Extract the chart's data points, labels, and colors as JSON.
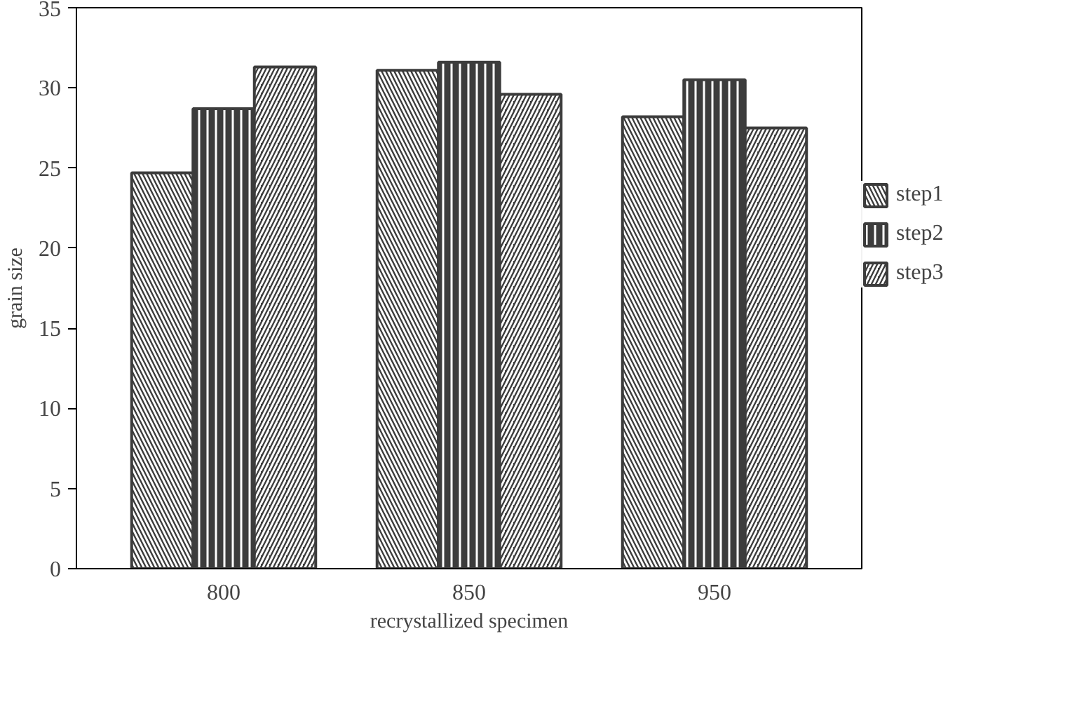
{
  "chart_data": {
    "type": "bar",
    "xlabel": "recrystallized specimen",
    "ylabel": "grain size",
    "categories": [
      "800",
      "850",
      "950"
    ],
    "series": [
      {
        "name": "step1",
        "color": "#3c3c3c",
        "values": [
          24.7,
          31.1,
          28.2
        ]
      },
      {
        "name": "step2",
        "color": "#3c3c3c",
        "values": [
          28.7,
          31.6,
          30.5
        ]
      },
      {
        "name": "step3",
        "color": "#3c3c3c",
        "values": [
          31.3,
          29.6,
          27.5
        ]
      }
    ],
    "ylim": [
      0,
      35
    ],
    "yticks": [
      0,
      5,
      10,
      15,
      20,
      25,
      30,
      35
    ],
    "grid": false,
    "legend": "right"
  }
}
